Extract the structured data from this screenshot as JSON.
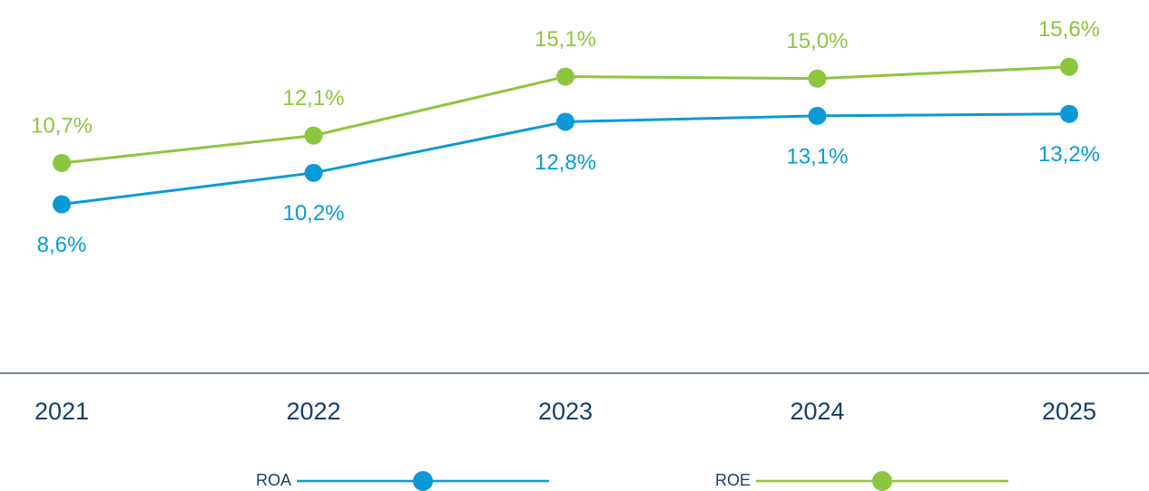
{
  "chart_data": {
    "type": "line",
    "categories": [
      "2021",
      "2022",
      "2023",
      "2024",
      "2025"
    ],
    "series": [
      {
        "name": "ROA",
        "color": "#0a9ad6",
        "values": [
          8.6,
          10.2,
          12.8,
          13.1,
          13.2
        ],
        "value_labels": [
          "8,6%",
          "10,2%",
          "12,8%",
          "13,1%",
          "13,2%"
        ]
      },
      {
        "name": "ROE",
        "color": "#8cc63f",
        "values": [
          10.7,
          12.1,
          15.1,
          15.0,
          15.6
        ],
        "value_labels": [
          "10,7%",
          "12,1%",
          "15,1%",
          "15,0%",
          "15,6%"
        ]
      }
    ],
    "ylim": [
      0,
      19
    ]
  }
}
